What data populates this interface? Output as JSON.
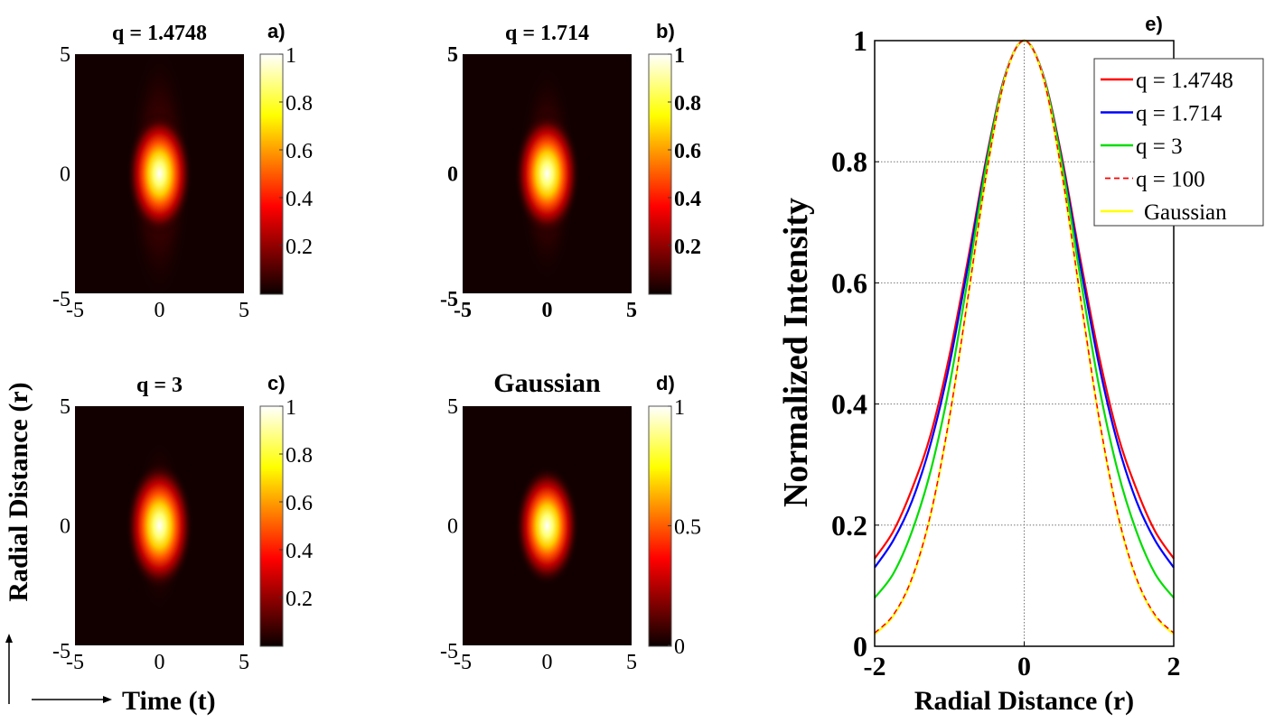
{
  "figure": {
    "shared_ylabel": "Radial Distance (r)",
    "shared_xlabel": "Time (t)"
  },
  "colors": {
    "red": "#ff0000",
    "blue": "#0000ff",
    "green": "#00dd00",
    "dashed_red": "#ff0000",
    "yellow": "#ffff00",
    "colormap": "hot"
  },
  "chart_data": [
    {
      "type": "heatmap",
      "panel_label": "a)",
      "title": "q = 1.4748",
      "xlim": [
        -5,
        5
      ],
      "ylim": [
        -5,
        5
      ],
      "xticks": [
        "-5",
        "0",
        "5"
      ],
      "yticks": [
        "5",
        "0",
        "-5"
      ],
      "colorbar": {
        "range": [
          0,
          1
        ],
        "ticks": [
          "1",
          "0.8",
          "0.6",
          "0.4",
          "0.2"
        ],
        "tick_values": [
          1,
          0.8,
          0.6,
          0.4,
          0.2
        ],
        "colormap": "hot"
      },
      "peak": [
        0,
        0
      ],
      "bold_ticks": false
    },
    {
      "type": "heatmap",
      "panel_label": "b)",
      "title": "q = 1.714",
      "xlim": [
        -5,
        5
      ],
      "ylim": [
        -5,
        5
      ],
      "xticks": [
        "-5",
        "0",
        "5"
      ],
      "yticks": [
        "5",
        "0",
        "-5"
      ],
      "colorbar": {
        "range": [
          0,
          1
        ],
        "ticks": [
          "1",
          "0.8",
          "0.6",
          "0.4",
          "0.2"
        ],
        "tick_values": [
          1,
          0.8,
          0.6,
          0.4,
          0.2
        ],
        "colormap": "hot"
      },
      "peak": [
        0,
        0
      ],
      "bold_ticks": true
    },
    {
      "type": "heatmap",
      "panel_label": "c)",
      "title": "q = 3",
      "xlim": [
        -5,
        5
      ],
      "ylim": [
        -5,
        5
      ],
      "xticks": [
        "-5",
        "0",
        "5"
      ],
      "yticks": [
        "5",
        "0",
        "-5"
      ],
      "colorbar": {
        "range": [
          0,
          1
        ],
        "ticks": [
          "1",
          "0.8",
          "0.6",
          "0.4",
          "0.2"
        ],
        "tick_values": [
          1,
          0.8,
          0.6,
          0.4,
          0.2
        ],
        "colormap": "hot"
      },
      "peak": [
        0,
        0
      ],
      "bold_ticks": false
    },
    {
      "type": "heatmap",
      "panel_label": "d)",
      "title": "Gaussian",
      "xlim": [
        -5,
        5
      ],
      "ylim": [
        -5,
        5
      ],
      "xticks": [
        "-5",
        "0",
        "5"
      ],
      "yticks": [
        "5",
        "0",
        "-5"
      ],
      "colorbar": {
        "range": [
          0,
          1
        ],
        "ticks": [
          "1",
          "0.5",
          "0"
        ],
        "tick_values": [
          1,
          0.5,
          0
        ],
        "colormap": "hot"
      },
      "peak": [
        0,
        0
      ],
      "bold_ticks": false
    },
    {
      "type": "line",
      "panel_label": "e)",
      "xlabel": "Radial Distance (r)",
      "ylabel": "Normalized Intensity",
      "xlim": [
        -2,
        2
      ],
      "ylim": [
        0,
        1
      ],
      "xticks": [
        -2,
        0,
        2
      ],
      "yticks": [
        0,
        0.2,
        0.4,
        0.6,
        0.8,
        1
      ],
      "xtick_labels": [
        "-2",
        "0",
        "2"
      ],
      "ytick_labels": [
        "0",
        "0.2",
        "0.4",
        "0.6",
        "0.8",
        "1"
      ],
      "grid": true,
      "legend_position": "top-right",
      "x": [
        -2,
        -1.75,
        -1.5,
        -1.25,
        -1,
        -0.75,
        -0.5,
        -0.25,
        0,
        0.25,
        0.5,
        0.75,
        1,
        1.25,
        1.5,
        1.75,
        2
      ],
      "series": [
        {
          "name": "q = 1.4748",
          "color": "#ff0000",
          "style": "solid",
          "values": [
            0.145,
            0.19,
            0.26,
            0.35,
            0.48,
            0.64,
            0.81,
            0.945,
            1,
            0.945,
            0.81,
            0.64,
            0.48,
            0.35,
            0.26,
            0.19,
            0.145
          ]
        },
        {
          "name": "q = 1.714",
          "color": "#0000ff",
          "style": "solid",
          "values": [
            0.13,
            0.175,
            0.24,
            0.335,
            0.465,
            0.63,
            0.805,
            0.944,
            1,
            0.944,
            0.805,
            0.63,
            0.465,
            0.335,
            0.24,
            0.175,
            0.13
          ]
        },
        {
          "name": "q = 3",
          "color": "#00dd00",
          "style": "solid",
          "values": [
            0.08,
            0.12,
            0.19,
            0.29,
            0.43,
            0.61,
            0.8,
            0.943,
            1,
            0.943,
            0.8,
            0.61,
            0.43,
            0.29,
            0.19,
            0.12,
            0.08
          ]
        },
        {
          "name": "q = 100",
          "color": "#ff0000",
          "style": "dashed",
          "values": [
            0.022,
            0.052,
            0.113,
            0.219,
            0.378,
            0.578,
            0.784,
            0.941,
            1,
            0.941,
            0.784,
            0.578,
            0.378,
            0.219,
            0.113,
            0.052,
            0.022
          ]
        },
        {
          "name": "Gaussian",
          "color": "#ffff00",
          "style": "solid",
          "values": [
            0.02,
            0.05,
            0.111,
            0.217,
            0.376,
            0.577,
            0.783,
            0.941,
            1,
            0.941,
            0.783,
            0.577,
            0.376,
            0.217,
            0.111,
            0.05,
            0.02
          ]
        }
      ]
    }
  ]
}
